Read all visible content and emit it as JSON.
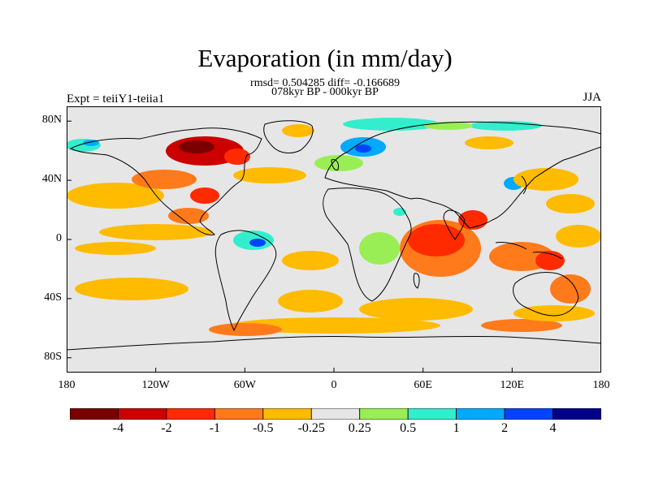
{
  "title": "Evaporation (in mm/day)",
  "stats_line": "rmsd= 0.504285 diff= -0.166689",
  "period_line": "078kyr BP - 000kyr BP",
  "experiment_label": "Expt = teiiY1-teiia1",
  "season_label": "JJA",
  "lat_ticks": [
    {
      "label": "80N",
      "value": 80
    },
    {
      "label": "40N",
      "value": 40
    },
    {
      "label": "0",
      "value": 0
    },
    {
      "label": "40S",
      "value": -40
    },
    {
      "label": "80S",
      "value": -80
    }
  ],
  "lon_ticks": [
    {
      "label": "180",
      "value": -180
    },
    {
      "label": "120W",
      "value": -120
    },
    {
      "label": "60W",
      "value": -60
    },
    {
      "label": "0",
      "value": 0
    },
    {
      "label": "60E",
      "value": 60
    },
    {
      "label": "120E",
      "value": 120
    },
    {
      "label": "180",
      "value": 180
    }
  ],
  "colorbar": {
    "colors": [
      "#7a0000",
      "#cc0000",
      "#ff2a00",
      "#ff7a1a",
      "#ffbb00",
      "#e6e6e6",
      "#99ee55",
      "#33eecc",
      "#00aaff",
      "#0044ff",
      "#000088"
    ],
    "labels": [
      "-4",
      "-2",
      "-1",
      "-0.5",
      "-0.25",
      "0.25",
      "0.5",
      "1",
      "2",
      "4"
    ]
  },
  "map": {
    "background_color": "#e6e6e6",
    "coast_color": "#000000"
  }
}
